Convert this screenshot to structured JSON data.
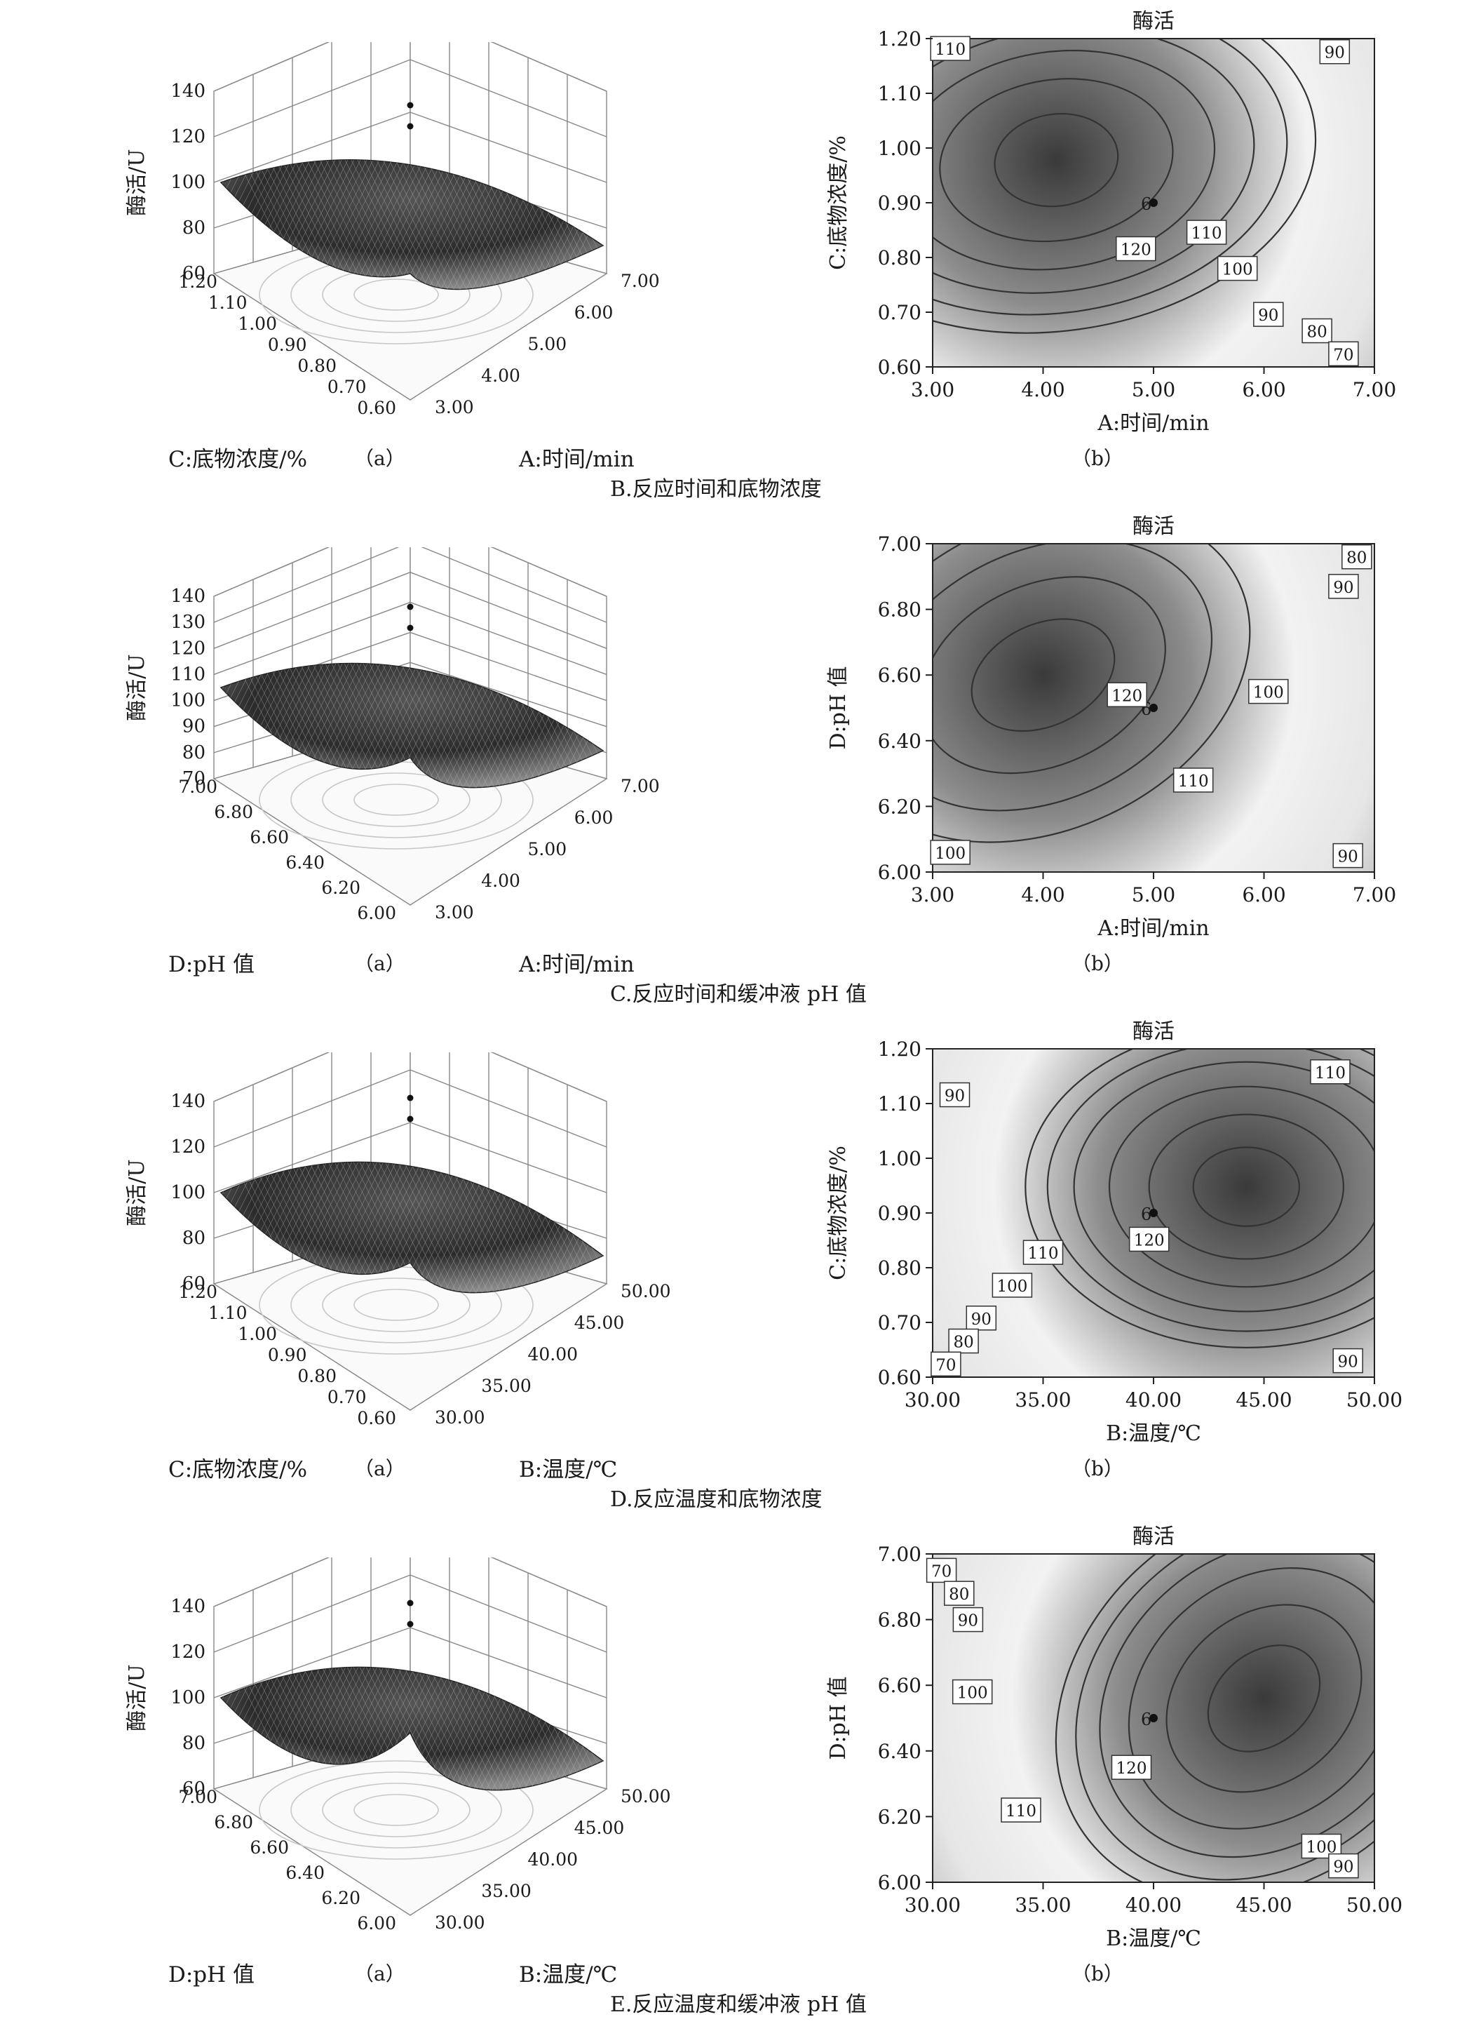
{
  "rows": [
    {
      "caption": "B.反应时间和底物浓度",
      "label_a": "（a）",
      "label_b": "（b）",
      "surface": {
        "z_label": "酶活/U",
        "z_ticks": [
          "60",
          "80",
          "100",
          "120",
          "140"
        ],
        "y_label": "C:底物浓度/%",
        "y_ticks": [
          "1.20",
          "1.10",
          "1.00",
          "0.90",
          "0.80",
          "0.70",
          "0.60"
        ],
        "x_label": "A:时间/min",
        "x_ticks": [
          "3.00",
          "4.00",
          "5.00",
          "6.00",
          "7.00"
        ]
      },
      "contour": {
        "title": "酶活",
        "x_label": "A:时间/min",
        "y_label": "C:底物浓度/%",
        "x_ticks": [
          "3.00",
          "4.00",
          "5.00",
          "6.00",
          "7.00"
        ],
        "y_ticks": [
          "0.60",
          "0.70",
          "0.80",
          "0.90",
          "1.00",
          "1.10",
          "1.20"
        ],
        "point_label": "6",
        "level_labels": [
          "110",
          "90",
          "120",
          "110",
          "100",
          "90",
          "80",
          "70"
        ]
      }
    },
    {
      "caption": "C.反应时间和缓冲液 pH 值",
      "label_a": "（a）",
      "label_b": "（b）",
      "surface": {
        "z_label": "酶活/U",
        "z_ticks": [
          "70",
          "80",
          "90",
          "100",
          "110",
          "120",
          "130",
          "140"
        ],
        "y_label": "D:pH 值",
        "y_ticks": [
          "7.00",
          "6.80",
          "6.60",
          "6.40",
          "6.20",
          "6.00"
        ],
        "x_label": "A:时间/min",
        "x_ticks": [
          "3.00",
          "4.00",
          "5.00",
          "6.00",
          "7.00"
        ]
      },
      "contour": {
        "title": "酶活",
        "x_label": "A:时间/min",
        "y_label": "D:pH 值",
        "x_ticks": [
          "3.00",
          "4.00",
          "5.00",
          "6.00",
          "7.00"
        ],
        "y_ticks": [
          "6.00",
          "6.20",
          "6.40",
          "6.60",
          "6.80",
          "7.00"
        ],
        "point_label": "6",
        "level_labels": [
          "80",
          "90",
          "120",
          "100",
          "110",
          "100",
          "90"
        ]
      }
    },
    {
      "caption": "D.反应温度和底物浓度",
      "label_a": "（a）",
      "label_b": "（b）",
      "surface": {
        "z_label": "酶活/U",
        "z_ticks": [
          "60",
          "80",
          "100",
          "120",
          "140"
        ],
        "y_label": "C:底物浓度/%",
        "y_ticks": [
          "1.20",
          "1.10",
          "1.00",
          "0.90",
          "0.80",
          "0.70",
          "0.60"
        ],
        "x_label": "B:温度/℃",
        "x_ticks": [
          "30.00",
          "35.00",
          "40.00",
          "45.00",
          "50.00"
        ]
      },
      "contour": {
        "title": "酶活",
        "x_label": "B:温度/℃",
        "y_label": "C:底物浓度/%",
        "x_ticks": [
          "30.00",
          "35.00",
          "40.00",
          "45.00",
          "50.00"
        ],
        "y_ticks": [
          "0.60",
          "0.70",
          "0.80",
          "0.90",
          "1.00",
          "1.10",
          "1.20"
        ],
        "point_label": "6",
        "level_labels": [
          "90",
          "110",
          "120",
          "110",
          "100",
          "90",
          "80",
          "70",
          "90"
        ]
      }
    },
    {
      "caption": "E.反应温度和缓冲液 pH 值",
      "label_a": "（a）",
      "label_b": "（b）",
      "surface": {
        "z_label": "酶活/U",
        "z_ticks": [
          "60",
          "80",
          "100",
          "120",
          "140"
        ],
        "y_label": "D:pH 值",
        "y_ticks": [
          "7.00",
          "6.80",
          "6.60",
          "6.40",
          "6.20",
          "6.00"
        ],
        "x_label": "B:温度/℃",
        "x_ticks": [
          "30.00",
          "35.00",
          "40.00",
          "45.00",
          "50.00"
        ]
      },
      "contour": {
        "title": "酶活",
        "x_label": "B:温度/℃",
        "y_label": "D:pH 值",
        "x_ticks": [
          "30.00",
          "35.00",
          "40.00",
          "45.00",
          "50.00"
        ],
        "y_ticks": [
          "6.00",
          "6.20",
          "6.40",
          "6.60",
          "6.80",
          "7.00"
        ],
        "point_label": "6",
        "level_labels": [
          "70",
          "80",
          "90",
          "100",
          "120",
          "110",
          "100",
          "90"
        ]
      }
    }
  ],
  "chart_data": [
    {
      "type": "surface",
      "title": "",
      "xlabel": "A:时间/min",
      "ylabel": "C:底物浓度/%",
      "zlabel": "酶活/U",
      "xlim": [
        3.0,
        7.0
      ],
      "ylim": [
        0.6,
        1.2
      ],
      "zlim": [
        60,
        140
      ]
    },
    {
      "type": "contour",
      "title": "酶活",
      "xlabel": "A:时间/min",
      "ylabel": "C:底物浓度/%",
      "xlim": [
        3.0,
        7.0
      ],
      "ylim": [
        0.6,
        1.2
      ],
      "levels": [
        70,
        80,
        90,
        100,
        110,
        120
      ],
      "design_point": {
        "x": 5.0,
        "y": 0.9,
        "label": "6"
      }
    },
    {
      "type": "surface",
      "title": "",
      "xlabel": "A:时间/min",
      "ylabel": "D:pH 值",
      "zlabel": "酶活/U",
      "xlim": [
        3.0,
        7.0
      ],
      "ylim": [
        6.0,
        7.0
      ],
      "zlim": [
        70,
        140
      ]
    },
    {
      "type": "contour",
      "title": "酶活",
      "xlabel": "A:时间/min",
      "ylabel": "D:pH 值",
      "xlim": [
        3.0,
        7.0
      ],
      "ylim": [
        6.0,
        7.0
      ],
      "levels": [
        80,
        90,
        100,
        110,
        120
      ],
      "design_point": {
        "x": 5.0,
        "y": 6.5,
        "label": "6"
      }
    },
    {
      "type": "surface",
      "title": "",
      "xlabel": "B:温度/℃",
      "ylabel": "C:底物浓度/%",
      "zlabel": "酶活/U",
      "xlim": [
        30.0,
        50.0
      ],
      "ylim": [
        0.6,
        1.2
      ],
      "zlim": [
        60,
        140
      ]
    },
    {
      "type": "contour",
      "title": "酶活",
      "xlabel": "B:温度/℃",
      "ylabel": "C:底物浓度/%",
      "xlim": [
        30.0,
        50.0
      ],
      "ylim": [
        0.6,
        1.2
      ],
      "levels": [
        70,
        80,
        90,
        100,
        110,
        120
      ],
      "design_point": {
        "x": 40.0,
        "y": 0.9,
        "label": "6"
      }
    },
    {
      "type": "surface",
      "title": "",
      "xlabel": "B:温度/℃",
      "ylabel": "D:pH 值",
      "zlabel": "酶活/U",
      "xlim": [
        30.0,
        50.0
      ],
      "ylim": [
        6.0,
        7.0
      ],
      "zlim": [
        60,
        140
      ]
    },
    {
      "type": "contour",
      "title": "酶活",
      "xlabel": "B:温度/℃",
      "ylabel": "D:pH 值",
      "xlim": [
        30.0,
        50.0
      ],
      "ylim": [
        6.0,
        7.0
      ],
      "levels": [
        70,
        80,
        90,
        100,
        110,
        120
      ],
      "design_point": {
        "x": 40.0,
        "y": 6.5,
        "label": "6"
      }
    }
  ]
}
